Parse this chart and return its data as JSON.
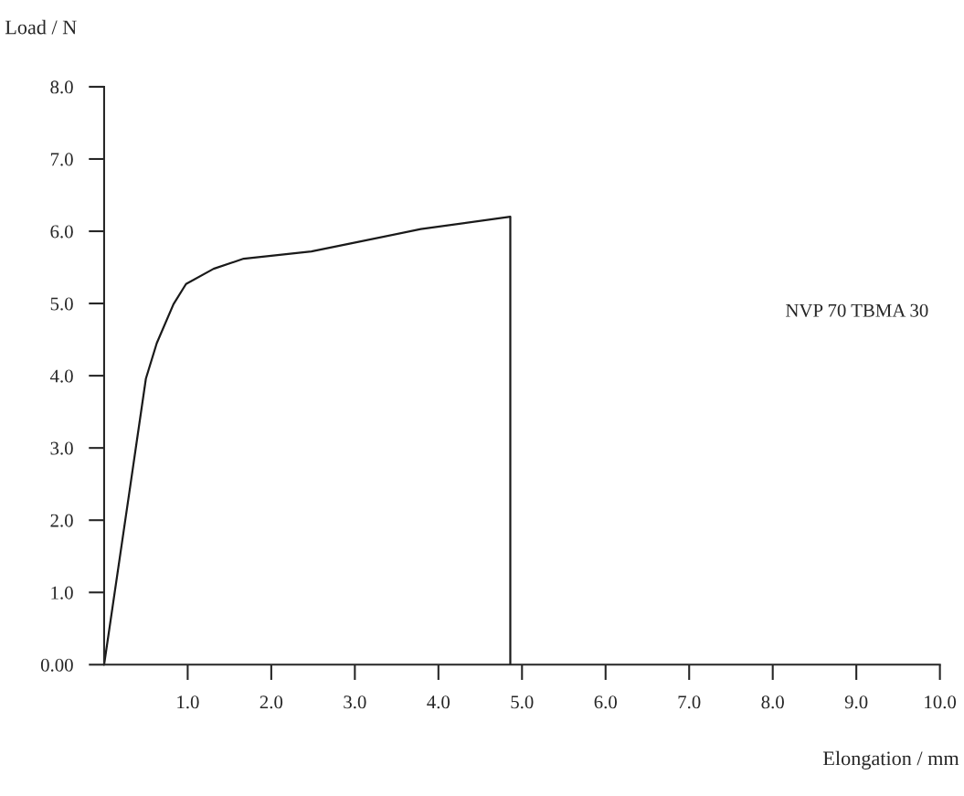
{
  "chart_data": {
    "type": "line",
    "xlabel": "Elongation / mm",
    "ylabel": "Load / N",
    "x": [
      0,
      0.32,
      0.5,
      0.63,
      0.83,
      0.98,
      1.31,
      1.67,
      2.48,
      2.95,
      3.79,
      4.86,
      4.86
    ],
    "values": [
      0,
      2.53,
      3.96,
      4.45,
      4.99,
      5.27,
      5.48,
      5.62,
      5.72,
      5.83,
      6.03,
      6.2,
      0
    ],
    "color": "#1a1a1a",
    "marker": "none",
    "line_style": "solid",
    "grid": false,
    "legend": false,
    "xlim": [
      0,
      10.0
    ],
    "ylim": [
      0,
      8.0
    ],
    "xticks": [
      {
        "value": 1,
        "label": "1.0"
      },
      {
        "value": 2,
        "label": "2.0"
      },
      {
        "value": 3,
        "label": "3.0"
      },
      {
        "value": 4,
        "label": "4.0"
      },
      {
        "value": 5,
        "label": "5.0"
      },
      {
        "value": 6,
        "label": "6.0"
      },
      {
        "value": 7,
        "label": "7.0"
      },
      {
        "value": 8,
        "label": "8.0"
      },
      {
        "value": 9,
        "label": "9.0"
      },
      {
        "value": 10,
        "label": "10.0"
      }
    ],
    "yticks": [
      {
        "value": 0,
        "label": "0.00"
      },
      {
        "value": 1,
        "label": "1.0"
      },
      {
        "value": 2,
        "label": "2.0"
      },
      {
        "value": 3,
        "label": "3.0"
      },
      {
        "value": 4,
        "label": "4.0"
      },
      {
        "value": 5,
        "label": "5.0"
      },
      {
        "value": 6,
        "label": "6.0"
      },
      {
        "value": 7,
        "label": "7.0"
      },
      {
        "value": 8,
        "label": "8.0"
      }
    ],
    "annotations": [
      "NVP 70 TBMA 30"
    ]
  }
}
